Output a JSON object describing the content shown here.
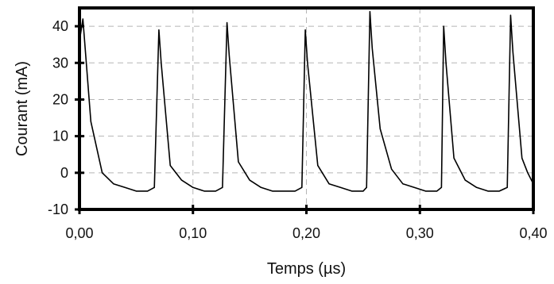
{
  "chart_data": {
    "type": "line",
    "title": "",
    "xlabel": "Temps (µs)",
    "ylabel": "Courant (mA)",
    "xlim": [
      0,
      0.4
    ],
    "ylim": [
      -10,
      45
    ],
    "xticks": [
      0.0,
      0.1,
      0.2,
      0.3,
      0.4
    ],
    "xtick_labels": [
      "0,00",
      "0,10",
      "0,20",
      "0,30",
      "0,40"
    ],
    "yticks": [
      -10,
      0,
      10,
      20,
      30,
      40
    ],
    "ytick_labels": [
      "-10",
      "0",
      "10",
      "20",
      "30",
      "40"
    ],
    "grid": true,
    "grid_style": "dashed",
    "line_color": "#000000",
    "series": [
      {
        "name": "",
        "x": [
          0.0,
          0.003,
          0.01,
          0.02,
          0.03,
          0.04,
          0.05,
          0.06,
          0.066,
          0.07,
          0.072,
          0.08,
          0.09,
          0.1,
          0.11,
          0.12,
          0.126,
          0.13,
          0.132,
          0.14,
          0.15,
          0.16,
          0.17,
          0.18,
          0.19,
          0.196,
          0.199,
          0.201,
          0.21,
          0.22,
          0.23,
          0.24,
          0.25,
          0.253,
          0.256,
          0.258,
          0.265,
          0.275,
          0.285,
          0.295,
          0.305,
          0.315,
          0.319,
          0.321,
          0.323,
          0.33,
          0.34,
          0.35,
          0.36,
          0.37,
          0.377,
          0.38,
          0.382,
          0.39,
          0.395,
          0.4
        ],
        "y": [
          36,
          42,
          14,
          0,
          -3,
          -4,
          -5,
          -5,
          -4,
          39,
          30,
          2,
          -2,
          -4,
          -5,
          -5,
          -4,
          41,
          32,
          3,
          -2,
          -4,
          -5,
          -5,
          -5,
          -4,
          39,
          30,
          2,
          -3,
          -4,
          -5,
          -5,
          -4,
          44,
          34,
          12,
          1,
          -3,
          -4,
          -5,
          -5,
          -4,
          40,
          30,
          4,
          -2,
          -4,
          -5,
          -5,
          -4,
          43,
          33,
          4,
          0,
          -3
        ]
      }
    ]
  }
}
